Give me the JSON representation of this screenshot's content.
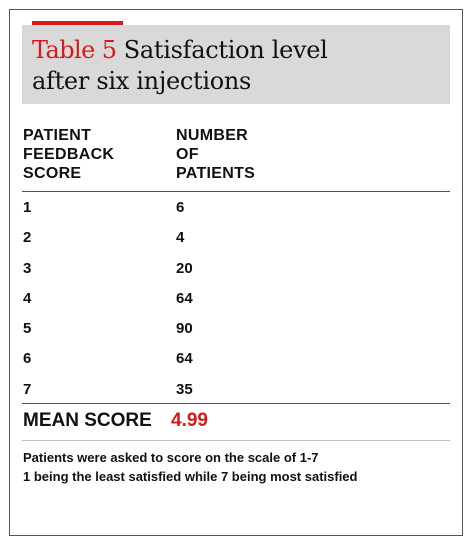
{
  "table": {
    "label": "Table 5",
    "title_line1": "Satisfaction level",
    "title_line2": "after six injections",
    "headers": {
      "score": [
        "PATIENT",
        "FEEDBACK",
        "SCORE"
      ],
      "patients": [
        "NUMBER",
        "OF",
        "PATIENTS"
      ]
    },
    "rows": [
      {
        "score": "1",
        "patients": "6"
      },
      {
        "score": "2",
        "patients": "4"
      },
      {
        "score": "3",
        "patients": "20"
      },
      {
        "score": "4",
        "patients": "64"
      },
      {
        "score": "5",
        "patients": "90"
      },
      {
        "score": "6",
        "patients": "64"
      },
      {
        "score": "7",
        "patients": "35"
      }
    ],
    "mean_label": "MEAN SCORE",
    "mean_value": "4.99",
    "footnote_line1": "Patients were asked to score on the scale of 1-7",
    "footnote_line2": "1 being the least satisfied while 7 being most satisfied"
  },
  "colors": {
    "accent": "#d7191c",
    "title_background": "#d9d9d9",
    "border": "#555555"
  }
}
